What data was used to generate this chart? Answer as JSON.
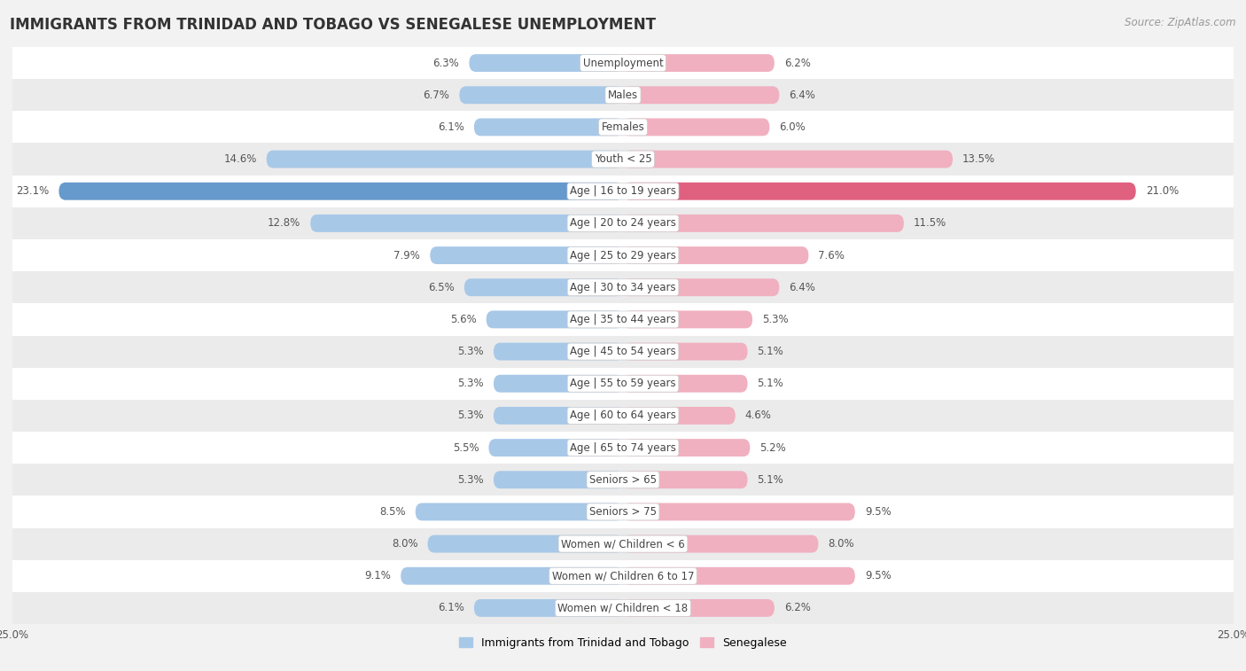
{
  "title": "IMMIGRANTS FROM TRINIDAD AND TOBAGO VS SENEGALESE UNEMPLOYMENT",
  "source": "Source: ZipAtlas.com",
  "categories": [
    "Unemployment",
    "Males",
    "Females",
    "Youth < 25",
    "Age | 16 to 19 years",
    "Age | 20 to 24 years",
    "Age | 25 to 29 years",
    "Age | 30 to 34 years",
    "Age | 35 to 44 years",
    "Age | 45 to 54 years",
    "Age | 55 to 59 years",
    "Age | 60 to 64 years",
    "Age | 65 to 74 years",
    "Seniors > 65",
    "Seniors > 75",
    "Women w/ Children < 6",
    "Women w/ Children 6 to 17",
    "Women w/ Children < 18"
  ],
  "left_values": [
    6.3,
    6.7,
    6.1,
    14.6,
    23.1,
    12.8,
    7.9,
    6.5,
    5.6,
    5.3,
    5.3,
    5.3,
    5.5,
    5.3,
    8.5,
    8.0,
    9.1,
    6.1
  ],
  "right_values": [
    6.2,
    6.4,
    6.0,
    13.5,
    21.0,
    11.5,
    7.6,
    6.4,
    5.3,
    5.1,
    5.1,
    4.6,
    5.2,
    5.1,
    9.5,
    8.0,
    9.5,
    6.2
  ],
  "left_color_normal": "#a8c8e8",
  "left_color_highlight": "#6699cc",
  "right_color_normal": "#f0b0c0",
  "right_color_highlight": "#e06080",
  "highlight_rows": [
    4
  ],
  "left_label": "Immigrants from Trinidad and Tobago",
  "right_label": "Senegalese",
  "bg_color": "#f2f2f2",
  "row_color_even": "#ffffff",
  "row_color_odd": "#ebebeb",
  "xlim": 25.0,
  "bar_height": 0.55,
  "title_fontsize": 12,
  "cat_fontsize": 8.5,
  "value_fontsize": 8.5,
  "source_fontsize": 8.5,
  "legend_fontsize": 9
}
